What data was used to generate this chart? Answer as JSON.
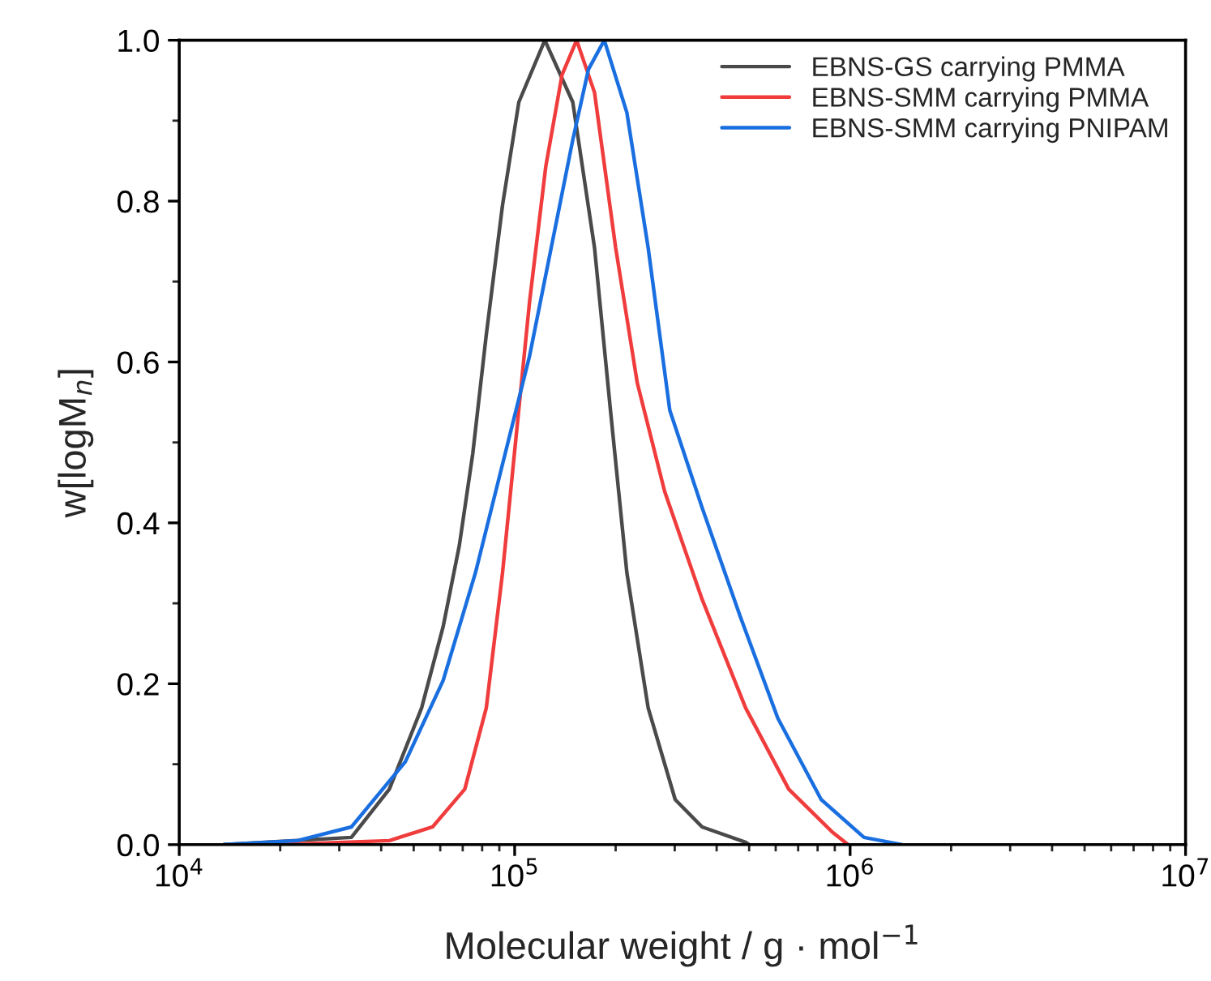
{
  "chart_data": {
    "type": "line",
    "xlabel": "Molecular weight / g · mol$^{−1}$",
    "ylabel": "w[logM$_{n}$]",
    "log": "x",
    "xlim": [
      10000,
      10000000
    ],
    "xticks": [
      {
        "value": 10000,
        "label": "10$^{4}$"
      },
      {
        "value": 100000,
        "label": "10$^{5}$"
      },
      {
        "value": 1000000,
        "label": "10$^{6}$"
      },
      {
        "value": 10000000,
        "label": "10$^{7}$"
      }
    ],
    "ylim": [
      0,
      1.0
    ],
    "yticks": [
      {
        "value": 0,
        "label": "0.0"
      },
      {
        "value": 0.2,
        "label": "0.2"
      },
      {
        "value": 0.4,
        "label": "0.4"
      },
      {
        "value": 0.6,
        "label": "0.6"
      },
      {
        "value": 0.8,
        "label": "0.8"
      },
      {
        "value": 1.0,
        "label": "1.0"
      }
    ],
    "grid": false,
    "legend": "top right",
    "marker": "none",
    "line_style": "solid",
    "series": [
      {
        "name": "EBNS-GS carrying PMMA",
        "color": "#4a4a4a",
        "x": [
          13600,
          32600,
          42300,
          52800,
          61200,
          68400,
          75000,
          82300,
          92000,
          102900,
          123000,
          149000,
          173000,
          193000,
          216000,
          250000,
          301000,
          362000,
          488000,
          500000
        ],
        "values": [
          0,
          0.009,
          0.069,
          0.17,
          0.271,
          0.372,
          0.486,
          0.634,
          0.795,
          0.923,
          1.0,
          0.923,
          0.742,
          0.54,
          0.338,
          0.17,
          0.056,
          0.022,
          0.003,
          0
        ]
      },
      {
        "name": "EBNS-SMM carrying PMMA",
        "color": "#f03c3c",
        "x": [
          20000,
          42300,
          56900,
          71000,
          82300,
          92000,
          99100,
          110700,
          123800,
          138400,
          153000,
          173000,
          200000,
          232000,
          280000,
          362000,
          488000,
          656000,
          883000,
          986000
        ],
        "values": [
          0,
          0.005,
          0.022,
          0.069,
          0.17,
          0.338,
          0.473,
          0.674,
          0.843,
          0.957,
          1.0,
          0.935,
          0.742,
          0.574,
          0.439,
          0.305,
          0.17,
          0.069,
          0.016,
          0
        ]
      },
      {
        "name": "EBNS-SMM carrying PNIPAM",
        "color": "#1a6fe0",
        "x": [
          13600,
          22500,
          32600,
          47200,
          61200,
          76400,
          92000,
          110700,
          128500,
          149000,
          166000,
          185000,
          216000,
          250000,
          290000,
          362000,
          470000,
          609000,
          820000,
          1100000,
          1430000
        ],
        "values": [
          0,
          0.005,
          0.022,
          0.103,
          0.204,
          0.338,
          0.473,
          0.607,
          0.742,
          0.876,
          0.964,
          1.0,
          0.91,
          0.742,
          0.54,
          0.419,
          0.284,
          0.157,
          0.056,
          0.009,
          0
        ]
      }
    ]
  }
}
